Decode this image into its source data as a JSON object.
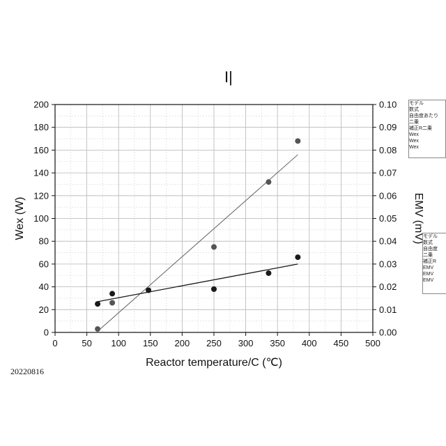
{
  "stamp": "20220816",
  "chart_data": {
    "type": "scatter",
    "title": "I|",
    "xlabel": "Reactor temperature/C (℃)",
    "ylabel": "Wex (W)",
    "y2label": "EMV (mV)",
    "xlim": [
      0,
      500
    ],
    "ylim": [
      0,
      200
    ],
    "y2lim": [
      0.0,
      0.1
    ],
    "x_ticks": [
      "0",
      "50",
      "100",
      "150",
      "200",
      "250",
      "300",
      "350",
      "400",
      "450",
      "500"
    ],
    "y_ticks": [
      "0",
      "20",
      "40",
      "60",
      "80",
      "100",
      "120",
      "140",
      "160",
      "180",
      "200"
    ],
    "y2_ticks": [
      "0.00",
      "0.01",
      "0.02",
      "0.03",
      "0.04",
      "0.05",
      "0.06",
      "0.07",
      "0.08",
      "0.09",
      "0.10"
    ],
    "grid": true,
    "series": [
      {
        "name": "Wex",
        "axis": "left",
        "color": "#555555",
        "x": [
          67,
          90,
          250,
          336,
          382
        ],
        "y": [
          3,
          26,
          75,
          132,
          168
        ],
        "fit": {
          "x": [
            67,
            382
          ],
          "y": [
            1,
            156
          ]
        }
      },
      {
        "name": "EMV",
        "axis": "right",
        "color": "#1a1a1a",
        "x": [
          67,
          90,
          147,
          250,
          336,
          382
        ],
        "y": [
          0.0125,
          0.017,
          0.0185,
          0.019,
          0.026,
          0.033
        ],
        "fit": {
          "x": [
            67,
            382
          ],
          "y": [
            0.0135,
            0.03
          ]
        }
      }
    ]
  },
  "fit_box_1": {
    "rows": [
      "モデル",
      "数式",
      "",
      "自由度あたり",
      "二乗",
      "補正R二乗",
      "",
      "Wex",
      "Wex",
      "Wex"
    ]
  },
  "fit_box_2": {
    "rows": [
      "モデル",
      "数式",
      "",
      "自由度",
      "二乗",
      "補正R",
      "",
      "EMV",
      "EMV",
      "EMV"
    ]
  }
}
